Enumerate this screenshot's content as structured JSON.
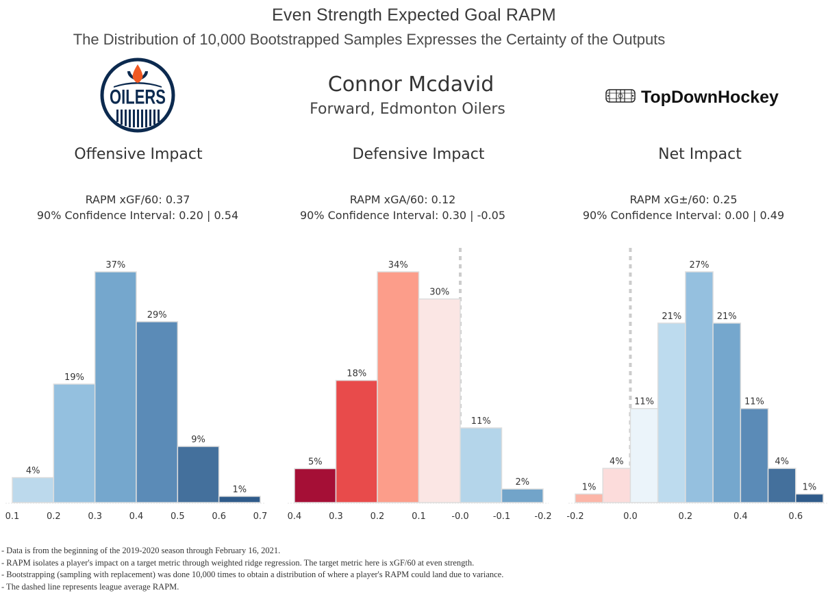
{
  "header": {
    "title": "Even Strength Expected Goal RAPM",
    "subtitle": "The Distribution of 10,000 Bootstrapped Samples Expresses the Certainty of the Outputs"
  },
  "player": {
    "name": "Connor Mcdavid",
    "position_team": "Forward, Edmonton Oilers",
    "team_logo_icon": "oilers-logo-icon",
    "team_logo_text": "OILERS"
  },
  "brand": {
    "icon": "hockey-rink-icon",
    "name": "TopDownHockey"
  },
  "panels": [
    {
      "title": "Offensive Impact",
      "stat": "RAPM xGF/60: 0.37",
      "ci": "90% Confidence Interval: 0.20 | 0.54"
    },
    {
      "title": "Defensive Impact",
      "stat": "RAPM xGA/60: 0.12",
      "ci": "90% Confidence Interval:  0.30 | -0.05"
    },
    {
      "title": "Net Impact",
      "stat": "RAPM xG±/60: 0.25",
      "ci": "90% Confidence Interval: 0.00 | 0.49"
    }
  ],
  "chart_data": [
    {
      "type": "bar",
      "title": "Offensive Impact",
      "xlabel": "",
      "ylabel": "",
      "bin_edges": [
        0.1,
        0.2,
        0.3,
        0.4,
        0.5,
        0.6,
        0.7
      ],
      "values": [
        4,
        19,
        37,
        29,
        9,
        1
      ],
      "labels": [
        "4%",
        "19%",
        "37%",
        "29%",
        "9%",
        "1%"
      ],
      "colors": [
        "#bcd9ec",
        "#94c0df",
        "#75a7cd",
        "#5b8bb7",
        "#44709c",
        "#2f5b8a"
      ],
      "xticks": [
        "0.1",
        "0.2",
        "0.3",
        "0.4",
        "0.5",
        "0.6",
        "0.7"
      ],
      "xlim": [
        0.1,
        0.7
      ],
      "reversed": false,
      "reference_line": null,
      "grid": false
    },
    {
      "type": "bar",
      "title": "Defensive Impact",
      "xlabel": "",
      "ylabel": "",
      "bin_edges": [
        0.4,
        0.3,
        0.2,
        0.1,
        0.0,
        -0.1,
        -0.2
      ],
      "values": [
        5,
        18,
        34,
        30,
        11,
        2
      ],
      "labels": [
        "5%",
        "18%",
        "34%",
        "30%",
        "11%",
        "2%"
      ],
      "colors": [
        "#a50f36",
        "#e84b4b",
        "#fc9d8a",
        "#fbe6e4",
        "#b4d5ea",
        "#72a4c9"
      ],
      "xticks": [
        "0.4",
        "0.3",
        "0.2",
        "0.1",
        "-0.0",
        "-0.1",
        "-0.2"
      ],
      "xlim": [
        0.4,
        -0.2
      ],
      "reversed": true,
      "reference_line": 0.0,
      "grid": false
    },
    {
      "type": "bar",
      "title": "Net Impact",
      "xlabel": "",
      "ylabel": "",
      "bin_edges": [
        -0.2,
        -0.1,
        0.0,
        0.1,
        0.2,
        0.3,
        0.4,
        0.5,
        0.6,
        0.7
      ],
      "values": [
        1,
        4,
        11,
        21,
        27,
        21,
        11,
        4,
        1
      ],
      "labels": [
        "1%",
        "4%",
        "11%",
        "21%",
        "27%",
        "21%",
        "11%",
        "4%",
        "1%"
      ],
      "colors": [
        "#fcb6a8",
        "#fcdcdb",
        "#ebf4fa",
        "#bddbee",
        "#95c0df",
        "#75a7cd",
        "#5b8bb7",
        "#44709c",
        "#2f5b8a"
      ],
      "xticks": [
        "-0.2",
        "0.0",
        "0.2",
        "0.4",
        "0.6"
      ],
      "xtick_values": [
        -0.2,
        0.0,
        0.2,
        0.4,
        0.6
      ],
      "xlim": [
        -0.2,
        0.7
      ],
      "reversed": false,
      "reference_line": 0.0,
      "grid": false
    }
  ],
  "footnotes": [
    "- Data is from the beginning of the 2019-2020 season through February 16, 2021.",
    "- RAPM isolates a player's impact on a target metric through weighted ridge regression. The target metric here is xGF/60 at even strength.",
    "- Bootstrapping (sampling with replacement) was done 10,000 times to obtain a distribution of where a player's RAPM could land due to variance.",
    "- The dashed line represents league average RAPM."
  ]
}
